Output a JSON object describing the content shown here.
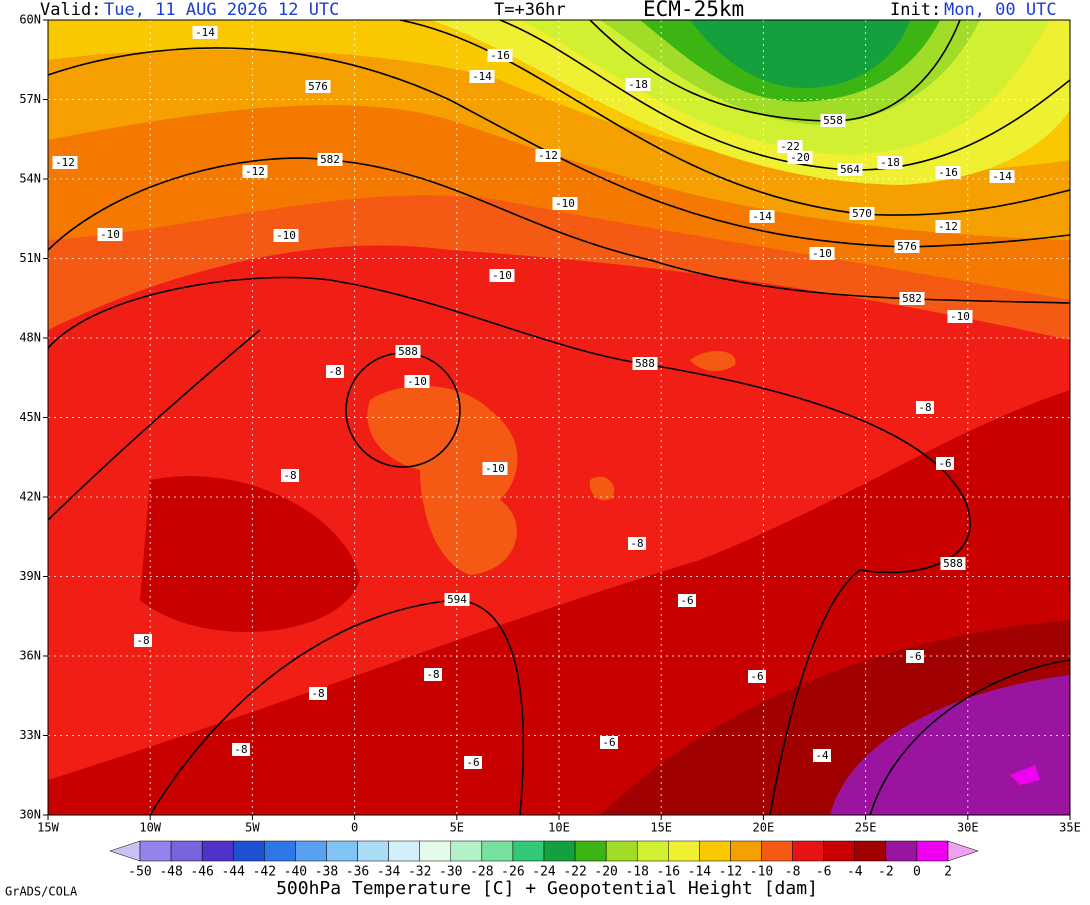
{
  "header": {
    "valid_label": "Valid:",
    "valid_time": "Tue, 11 AUG 2026  12 UTC",
    "lead_time": "T=+36hr",
    "model": "ECM-25km",
    "init_label": "Init:",
    "init_time": "Mon, 00 UTC"
  },
  "map": {
    "lat_labels": [
      "60N",
      "57N",
      "54N",
      "51N",
      "48N",
      "45N",
      "42N",
      "39N",
      "36N",
      "33N",
      "30N"
    ],
    "lon_labels": [
      "15W",
      "10W",
      "5W",
      "0",
      "5E",
      "10E",
      "15E",
      "20E",
      "25E",
      "30E",
      "35E"
    ],
    "height_contour_labels": [
      "576",
      "582",
      "558",
      "564",
      "570",
      "576",
      "582",
      "588",
      "588",
      "588",
      "594"
    ],
    "temperature_labels": [
      "-14",
      "-16",
      "-14",
      "-18",
      "-12",
      "-12",
      "-12",
      "-22",
      "-20",
      "-18",
      "-16",
      "-14",
      "-10",
      "-14",
      "-12",
      "-10",
      "-10",
      "-10",
      "-10",
      "-10",
      "-8",
      "-10",
      "-8",
      "-6",
      "-10",
      "-8",
      "-8",
      "-6",
      "-8",
      "-6",
      "-8",
      "-6",
      "-8",
      "-6",
      "-8",
      "-4",
      "-6"
    ]
  },
  "colorbar": {
    "labels": [
      "-50",
      "-48",
      "-46",
      "-44",
      "-42",
      "-40",
      "-38",
      "-36",
      "-34",
      "-32",
      "-30",
      "-28",
      "-26",
      "-24",
      "-22",
      "-20",
      "-18",
      "-16",
      "-14",
      "-12",
      "-10",
      "-8",
      "-6",
      "-4",
      "-2",
      "0",
      "2"
    ],
    "under_color": "#c8c3f5",
    "colors": [
      "#9682eb",
      "#7864dc",
      "#5032c8",
      "#1e50d2",
      "#2d78e6",
      "#5aa0f0",
      "#82c3f5",
      "#aadcf5",
      "#d2f0fa",
      "#e6faeb",
      "#b4f0c8",
      "#78e1a0",
      "#32c878",
      "#14a03c",
      "#3cb414",
      "#a0dc28",
      "#d2f032",
      "#f0f032",
      "#fac800",
      "#f5a000",
      "#f55a14",
      "#e61414",
      "#c80000",
      "#a00000",
      "#9b14a0",
      "#f000f0"
    ],
    "over_color": "#f0a0f0"
  },
  "footer": {
    "credit": "GrADS/COLA",
    "caption": "500hPa Temperature [C] + Geopotential Height [dam]"
  }
}
